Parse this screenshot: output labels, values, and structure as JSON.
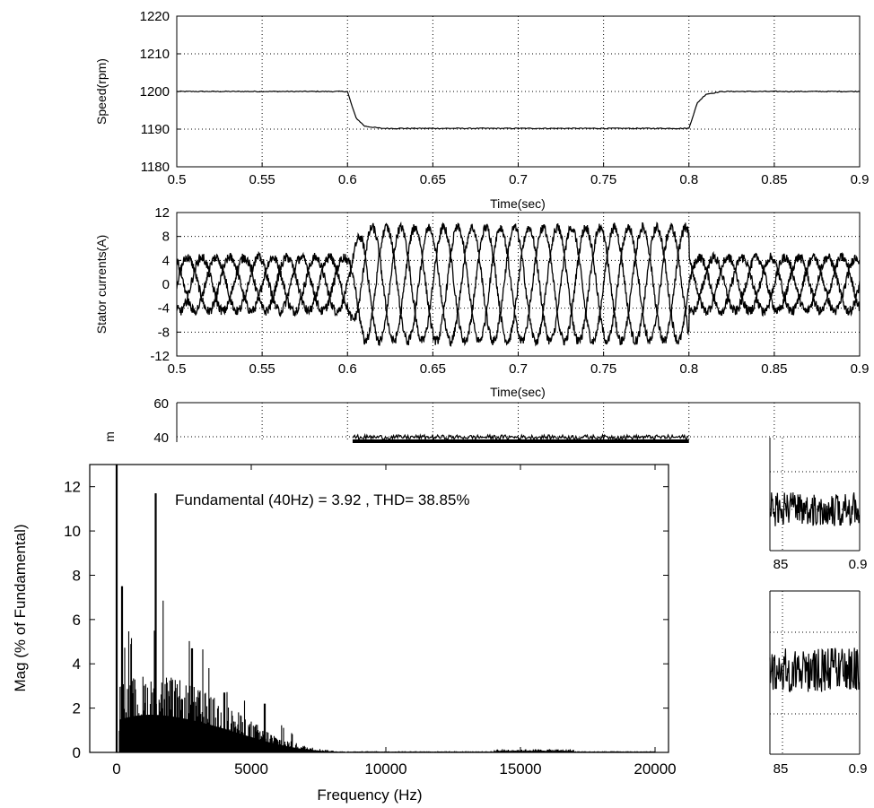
{
  "chart_data": [
    {
      "id": "speed",
      "type": "line",
      "xlabel": "Time(sec)",
      "ylabel": "Speed(rpm)",
      "xlim": [
        0.5,
        0.9
      ],
      "ylim": [
        1180,
        1220
      ],
      "xticks": [
        0.5,
        0.55,
        0.6,
        0.65,
        0.7,
        0.75,
        0.8,
        0.85,
        0.9
      ],
      "xtick_labels": [
        "0.5",
        "0.55",
        "0.6",
        "0.65",
        "0.7",
        "0.75",
        "0.8",
        "0.85",
        "0.9"
      ],
      "yticks": [
        1180,
        1190,
        1200,
        1210,
        1220
      ],
      "ytick_labels": [
        "1180",
        "1190",
        "1200",
        "1210",
        "1220"
      ],
      "grid": true,
      "series": [
        {
          "x": [
            0.5,
            0.6,
            0.602,
            0.605,
            0.61,
            0.62,
            0.8,
            0.802,
            0.805,
            0.81,
            0.82,
            0.9
          ],
          "y": [
            1200,
            1200,
            1197,
            1193,
            1190.8,
            1190.2,
            1190.2,
            1193,
            1197,
            1199.3,
            1200,
            1200
          ]
        }
      ]
    },
    {
      "id": "stator-currents",
      "type": "line",
      "xlabel": "Time(sec)",
      "ylabel": "Stator currents(A)",
      "xlim": [
        0.5,
        0.9
      ],
      "ylim": [
        -12,
        12
      ],
      "xticks": [
        0.5,
        0.55,
        0.6,
        0.65,
        0.7,
        0.75,
        0.8,
        0.85,
        0.9
      ],
      "xtick_labels": [
        "0.5",
        "0.55",
        "0.6",
        "0.65",
        "0.7",
        "0.75",
        "0.8",
        "0.85",
        "0.9"
      ],
      "yticks": [
        -12,
        -8,
        -4,
        0,
        4,
        8,
        12
      ],
      "ytick_labels": [
        "-12",
        "-8",
        "-4",
        "0",
        "4",
        "8",
        "12"
      ],
      "grid": true,
      "description_values": {
        "phases": 3,
        "frequency_hz": 40,
        "amplitude_low_a": 4.5,
        "amplitude_high_a": 9.5,
        "high_interval": [
          0.6,
          0.8
        ]
      }
    },
    {
      "id": "torque-partial",
      "type": "line",
      "ylabel_visible": "m",
      "xlim": [
        0.5,
        0.9
      ],
      "ylim_visible": [
        40,
        60
      ],
      "yticks": [
        40,
        60
      ],
      "ytick_labels": [
        "40",
        "60"
      ],
      "grid": true,
      "band_interval": [
        0.603,
        0.8
      ],
      "band_level": 37
    },
    {
      "id": "right-fragment-1",
      "type": "line",
      "xtick_labels": [
        "85",
        "0.9"
      ],
      "grid": true
    },
    {
      "id": "right-fragment-2",
      "type": "line",
      "xtick_labels": [
        "85",
        "0.9"
      ],
      "grid": true
    },
    {
      "id": "fft",
      "type": "bar",
      "xlabel": "Frequency (Hz)",
      "ylabel": "Mag (% of Fundamental)",
      "annotation": "Fundamental (40Hz) = 3.92 , THD= 38.85%",
      "xlim": [
        -1000,
        20500
      ],
      "ylim": [
        0,
        13
      ],
      "xticks": [
        0,
        5000,
        10000,
        15000,
        20000
      ],
      "xtick_labels": [
        "0",
        "5000",
        "10000",
        "15000",
        "20000"
      ],
      "yticks": [
        0,
        2,
        4,
        6,
        8,
        10,
        12
      ],
      "ytick_labels": [
        "0",
        "2",
        "4",
        "6",
        "8",
        "10",
        "12"
      ],
      "peaks": [
        {
          "x": 0,
          "y": 13
        },
        {
          "x": 200,
          "y": 7.5
        },
        {
          "x": 1450,
          "y": 11.7
        },
        {
          "x": 2800,
          "y": 4.7
        },
        {
          "x": 4000,
          "y": 2.7
        },
        {
          "x": 5500,
          "y": 2.2
        }
      ]
    }
  ]
}
